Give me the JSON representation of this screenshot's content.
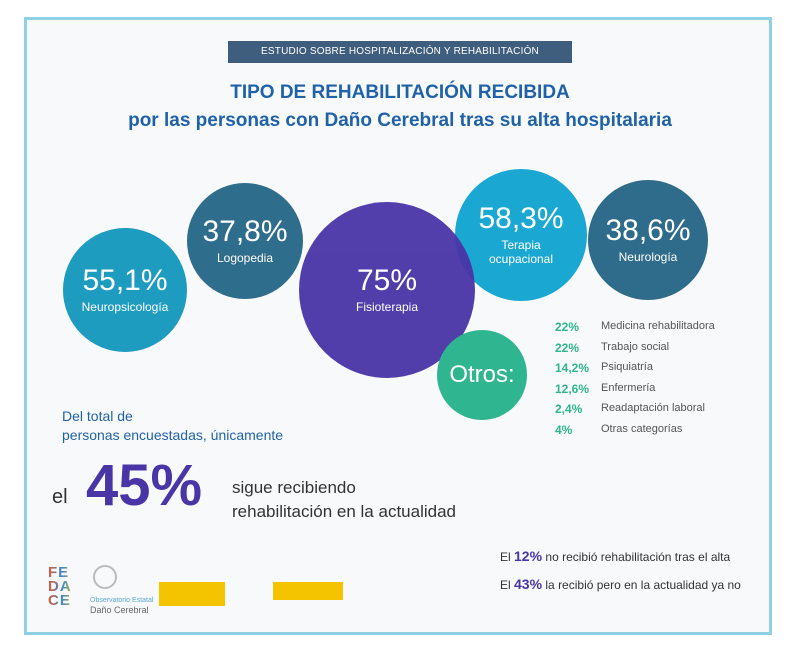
{
  "banner": "ESTUDIO SOBRE HOSPITALIZACIÓN Y REHABILITACIÓN",
  "title_line1": "TIPO DE REHABILITACIÓN RECIBIDA",
  "title_line2": "por las personas con Daño Cerebral tras su alta hospitalaria",
  "chart_data": {
    "type": "bubble",
    "title": "TIPO DE REHABILITACIÓN RECIBIDA",
    "series": [
      {
        "name": "Neuropsicología",
        "value": 55.1,
        "label": "55,1%",
        "color": "#1d9cc0"
      },
      {
        "name": "Logopedia",
        "value": 37.8,
        "label": "37,8%",
        "color": "#2e6d8c"
      },
      {
        "name": "Fisioterapia",
        "value": 75,
        "label": "75%",
        "color": "#4a35a6"
      },
      {
        "name": "Terapia ocupacional",
        "value": 58.3,
        "label": "58,3%",
        "color": "#1aa8d2"
      },
      {
        "name": "Neurología",
        "value": 38.6,
        "label": "38,6%",
        "color": "#2f6b8b"
      },
      {
        "name": "Otros:",
        "label": "",
        "color": "#2fb58f"
      }
    ],
    "otros": [
      {
        "value": "22%",
        "name": "Medicina rehabilitadora"
      },
      {
        "value": "22%",
        "name": "Trabajo social"
      },
      {
        "value": "14,2%",
        "name": "Psiquiatría"
      },
      {
        "value": "12,6%",
        "name": "Enfermería"
      },
      {
        "value": "2,4%",
        "name": "Readaptación laboral"
      },
      {
        "value": "4%",
        "name": "Otras categorías"
      }
    ]
  },
  "summary": {
    "intro1": "Del total de",
    "intro2": "personas encuestadas, únicamente",
    "el": "el",
    "big": "45%",
    "rest1": "sigue recibiendo",
    "rest2": "rehabilitación en la actualidad",
    "note1_pre": "El",
    "note1_val": "12%",
    "note1_txt": "no recibió rehabilitación tras el alta",
    "note2_pre": "El",
    "note2_val": "43%",
    "note2_txt": "la recibió pero en la actualidad ya no"
  },
  "logos": {
    "fedace": "FEDACE",
    "observatorio1": "Observatorio Estatal",
    "observatorio2": "Daño Cerebral"
  }
}
